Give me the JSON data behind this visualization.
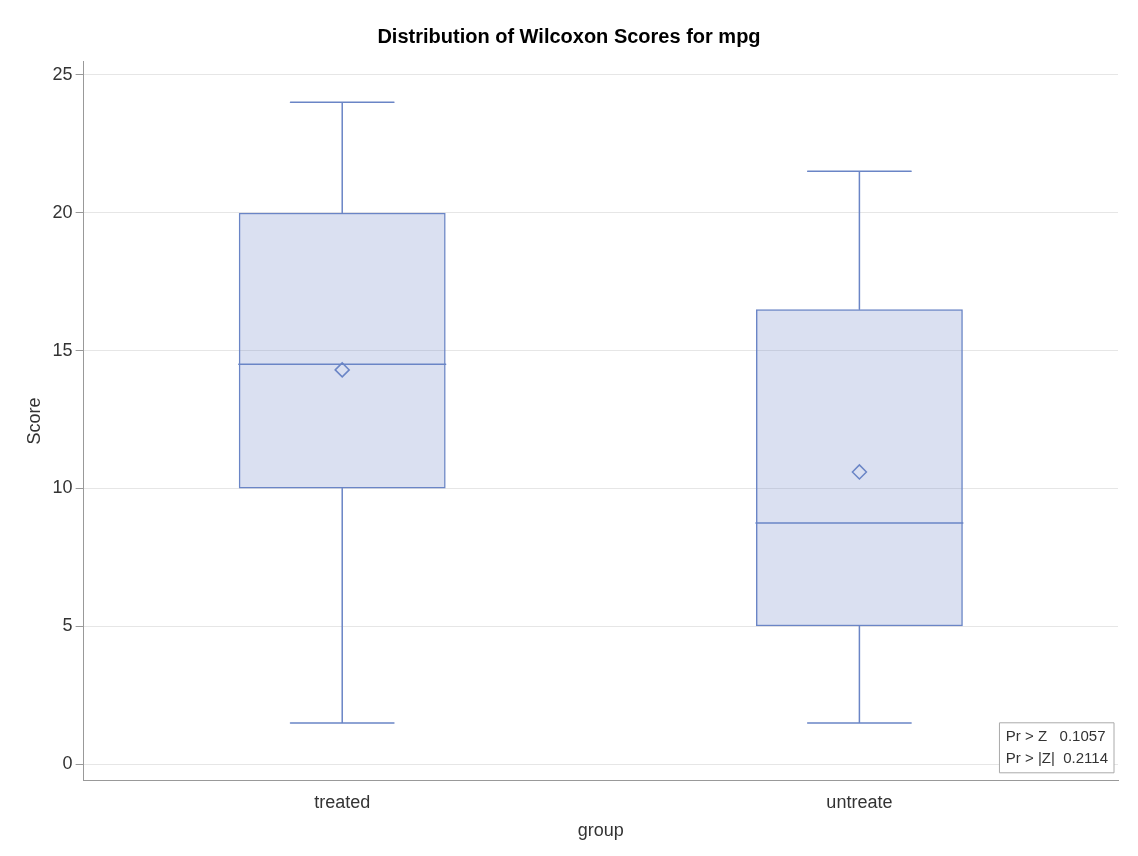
{
  "chart_data": {
    "type": "box",
    "title": "Distribution of Wilcoxon Scores for mpg",
    "xlabel": "group",
    "ylabel": "Score",
    "categories": [
      "treated",
      "untreate"
    ],
    "boxes": [
      {
        "low": 1.5,
        "q1": 10,
        "median": 14.5,
        "q3": 20,
        "high": 24,
        "mean": 14.3
      },
      {
        "low": 1.5,
        "q1": 5,
        "median": 8.75,
        "q3": 16.5,
        "high": 21.5,
        "mean": 10.6
      }
    ],
    "color": "#6a85c6",
    "ylim": [
      -0.6,
      25.5
    ],
    "yticks": [
      0,
      5,
      10,
      15,
      20,
      25
    ],
    "grid": "y",
    "marker": "diamond",
    "annotations": [
      "Pr > Z   0.1057",
      "Pr > |Z|  0.2114"
    ]
  }
}
